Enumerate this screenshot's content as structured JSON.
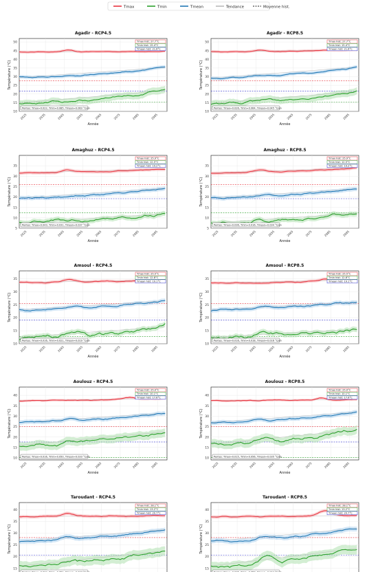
{
  "legend": {
    "items": [
      {
        "label": "Tmax",
        "color": "#e8343f",
        "style": "solid"
      },
      {
        "label": "Tmin",
        "color": "#2ca02c",
        "style": "solid"
      },
      {
        "label": "Tmean",
        "color": "#1f77b4",
        "style": "solid"
      },
      {
        "label": "Tendance",
        "color": "#bbbbbb",
        "style": "solid"
      },
      {
        "label": "Moyenne hist.",
        "color": "#222222",
        "style": "dashed"
      }
    ]
  },
  "colors": {
    "tmax": "#e8343f",
    "tmin": "#2ca02c",
    "tmean": "#1f77b4",
    "tmax_band": "#f7b7bb",
    "tmin_band": "#b5e2b5",
    "tmean_band": "#b3d4ee",
    "hist_max": "#e8343f",
    "hist_min": "#2ca02c",
    "hist_mean": "#3333cc"
  },
  "chart_data": [
    {
      "type": "line",
      "title": "Agadir - RCP4.5",
      "xlabel": "Année",
      "ylabel": "Température (°C)",
      "ylim": [
        10,
        52
      ],
      "yticks": [
        10,
        15,
        20,
        25,
        30,
        35,
        40,
        45,
        50
      ],
      "xticks": [
        2025,
        2035,
        2045,
        2055,
        2065,
        2075,
        2085,
        2095
      ],
      "xlim": [
        2021,
        2100
      ],
      "hist_labels": [
        "Tmax hist: 27.7°C",
        "Tmin hist: 15.4°C",
        "Tmean hist: 21.6°C"
      ],
      "hist": {
        "tmax": 27.7,
        "tmin": 15.4,
        "tmean": 21.6
      },
      "footer": "Pentes: Tmax=0.022, Tmin=0.085, Tmean=0.063 °C/an",
      "series": [
        {
          "name": "Tmax",
          "start": 44.2,
          "end": 44.6,
          "bump": [
            2047,
            45.3
          ],
          "band": 0.8
        },
        {
          "name": "Tmean",
          "start": 29.5,
          "end": 35.3,
          "bump": [
            2060,
            31.2
          ],
          "band": 1.0
        },
        {
          "name": "Tmin",
          "start": 14.8,
          "end": 22.0,
          "bump": [
            2060,
            17
          ],
          "band": 2.0
        }
      ]
    },
    {
      "type": "line",
      "title": "Agadir - RCP8.5",
      "xlabel": "Année",
      "ylabel": "Température (°C)",
      "ylim": [
        10,
        52
      ],
      "yticks": [
        10,
        15,
        20,
        25,
        30,
        35,
        40,
        45,
        50
      ],
      "xticks": [
        2025,
        2035,
        2045,
        2055,
        2065,
        2075,
        2085,
        2095
      ],
      "xlim": [
        2021,
        2100
      ],
      "hist_labels": [
        "Tmax hist: 27.7°C",
        "Tmin hist: 15.4°C",
        "Tmean hist: 21.6°C"
      ],
      "hist": {
        "tmax": 27.7,
        "tmin": 15.4,
        "tmean": 21.6
      },
      "footer": "Pentes: Tmax=0.026, Tmin=0.064, Tmean=0.045 °C/an",
      "series": [
        {
          "name": "Tmax",
          "start": 44.2,
          "end": 45.6,
          "bump": [
            2047,
            45.3
          ],
          "band": 0.8
        },
        {
          "name": "Tmean",
          "start": 29.2,
          "end": 35.5,
          "bump": [
            2050,
            31.0
          ],
          "band": 1.0
        },
        {
          "name": "Tmin",
          "start": 14.5,
          "end": 21.5,
          "bump": [
            2050,
            17
          ],
          "band": 2.0
        }
      ]
    },
    {
      "type": "line",
      "title": "Amaghuz - RCP4.5",
      "xlabel": "Année",
      "ylabel": "Température (°C)",
      "ylim": [
        5,
        40
      ],
      "yticks": [
        5,
        10,
        15,
        20,
        25,
        30,
        35
      ],
      "xticks": [
        2025,
        2035,
        2045,
        2055,
        2065,
        2075,
        2085,
        2095
      ],
      "xlim": [
        2021,
        2100
      ],
      "hist_labels": [
        "Tmax hist: 25.9°C",
        "Tmin hist: 12.5°C",
        "Tmean hist: 19.2°C"
      ],
      "hist": {
        "tmax": 25.9,
        "tmin": 12.5,
        "tmean": 19.2
      },
      "footer": "Pentes: Tmax=0.043, Tmin=0.031, Tmean=0.037 °C/an",
      "series": [
        {
          "name": "Tmax",
          "start": 31.5,
          "end": 33.5,
          "bump": [
            2047,
            33.0
          ],
          "band": 0.8
        },
        {
          "name": "Tmean",
          "start": 19.5,
          "end": 24.2,
          "bump": [
            2055,
            20.8
          ],
          "band": 1.0
        },
        {
          "name": "Tmin",
          "start": 7.5,
          "end": 12.0,
          "bump": [
            2040,
            9
          ],
          "band": 1.2
        }
      ]
    },
    {
      "type": "line",
      "title": "Amaghuz - RCP8.5",
      "xlabel": "Année",
      "ylabel": "Température (°C)",
      "ylim": [
        5,
        40
      ],
      "yticks": [
        5,
        10,
        15,
        20,
        25,
        30,
        35
      ],
      "xticks": [
        2025,
        2035,
        2045,
        2055,
        2065,
        2075,
        2085,
        2095
      ],
      "xlim": [
        2021,
        2100
      ],
      "hist_labels": [
        "Tmax hist: 25.9°C",
        "Tmin hist: 12.5°C",
        "Tmean hist: 19.2°C"
      ],
      "hist": {
        "tmax": 25.9,
        "tmin": 12.5,
        "tmean": 19.2
      },
      "footer": "Pentes: Tmax=0.036, Tmin=0.016, Tmean=0.034 °C/an",
      "series": [
        {
          "name": "Tmax",
          "start": 31.5,
          "end": 34.0,
          "bump": [
            2047,
            33.0
          ],
          "band": 0.8
        },
        {
          "name": "Tmean",
          "start": 19.5,
          "end": 24.0,
          "bump": [
            2050,
            20.8
          ],
          "band": 1.0
        },
        {
          "name": "Tmin",
          "start": 7.5,
          "end": 12.2,
          "bump": [
            2045,
            9
          ],
          "band": 1.2
        }
      ]
    },
    {
      "type": "line",
      "title": "Amsoul - RCP4.5",
      "xlabel": "Année",
      "ylabel": "Température (°C)",
      "ylim": [
        10,
        38
      ],
      "yticks": [
        10,
        15,
        20,
        25,
        30,
        35
      ],
      "xticks": [
        2025,
        2035,
        2045,
        2055,
        2065,
        2075,
        2085,
        2095
      ],
      "xlim": [
        2021,
        2100
      ],
      "hist_labels": [
        "Tmax hist: 25.5°C",
        "Tmin hist: 12.8°C",
        "Tmean hist: 19.1°C"
      ],
      "hist": {
        "tmax": 25.5,
        "tmin": 12.8,
        "tmean": 19.1
      },
      "footer": "Pentes: Tmax=0.016, Tmin=0.021, Tmean=0.019 °C/an",
      "series": [
        {
          "name": "Tmax",
          "start": 33.5,
          "end": 34.5,
          "bump": [
            2047,
            34.8
          ],
          "band": 0.6
        },
        {
          "name": "Tmean",
          "start": 23.0,
          "end": 26.5,
          "bump": [
            2050,
            24.5
          ],
          "band": 0.8
        },
        {
          "name": "Tmin",
          "start": 12.5,
          "end": 16.5,
          "bump": [
            2050,
            14.5
          ],
          "band": 1.0
        }
      ]
    },
    {
      "type": "line",
      "title": "Amsoul - RCP8.5",
      "xlabel": "Année",
      "ylabel": "Température (°C)",
      "ylim": [
        10,
        38
      ],
      "yticks": [
        10,
        15,
        20,
        25,
        30,
        35
      ],
      "xticks": [
        2025,
        2035,
        2045,
        2055,
        2065,
        2075,
        2085,
        2095
      ],
      "xlim": [
        2021,
        2100
      ],
      "hist_labels": [
        "Tmax hist: 25.5°C",
        "Tmin hist: 12.8°C",
        "Tmean hist: 19.1°C"
      ],
      "hist": {
        "tmax": 25.5,
        "tmin": 12.8,
        "tmean": 19.1
      },
      "footer": "Pentes: Tmax=0.016, Tmin=0.018, Tmean=0.016 °C/an",
      "series": [
        {
          "name": "Tmax",
          "start": 33.3,
          "end": 34.5,
          "bump": [
            2082,
            35.0
          ],
          "band": 0.6
        },
        {
          "name": "Tmean",
          "start": 23.0,
          "end": 26.0,
          "bump": [
            2050,
            24.5
          ],
          "band": 0.8
        },
        {
          "name": "Tmin",
          "start": 12.5,
          "end": 15.5,
          "bump": [
            2050,
            14.5
          ],
          "band": 1.0
        }
      ]
    },
    {
      "type": "line",
      "title": "Aoulouz - RCP4.5",
      "xlabel": "Année",
      "ylabel": "Température (°C)",
      "ylim": [
        9,
        44
      ],
      "yticks": [
        10,
        15,
        20,
        25,
        30,
        35,
        40
      ],
      "xticks": [
        2025,
        2035,
        2045,
        2055,
        2065,
        2075,
        2085,
        2095
      ],
      "xlim": [
        2021,
        2100
      ],
      "hist_labels": [
        "Tmax hist: 25.0°C",
        "Tmin hist: 10.1°C",
        "Tmean hist: 17.6°C"
      ],
      "hist": {
        "tmax": 25.0,
        "tmin": 10.1,
        "tmean": 17.6
      },
      "footer": "Pentes: Tmax=0.016, Tmin=0.050, Tmean=0.033 °C/an",
      "series": [
        {
          "name": "Tmax",
          "start": 37.5,
          "end": 38.5,
          "bump": [
            2080,
            39.0
          ],
          "band": 0.6
        },
        {
          "name": "Tmean",
          "start": 27.0,
          "end": 31.5,
          "bump": [
            2047,
            28.8
          ],
          "band": 1.0
        },
        {
          "name": "Tmin",
          "start": 16.0,
          "end": 22.5,
          "bump": [
            2047,
            18
          ],
          "band": 2.0
        }
      ]
    },
    {
      "type": "line",
      "title": "Aoulouz - RCP8.5",
      "xlabel": "Année",
      "ylabel": "Température (°C)",
      "ylim": [
        9,
        44
      ],
      "yticks": [
        10,
        15,
        20,
        25,
        30,
        35,
        40
      ],
      "xticks": [
        2025,
        2035,
        2045,
        2055,
        2065,
        2075,
        2085,
        2095
      ],
      "xlim": [
        2021,
        2100
      ],
      "hist_labels": [
        "Tmax hist: 25.0°C",
        "Tmin hist: 10.1°C",
        "Tmean hist: 17.6°C"
      ],
      "hist": {
        "tmax": 25.0,
        "tmin": 10.1,
        "tmean": 17.6
      },
      "footer": "Pentes: Tmax=0.015, Tmin=0.056, Tmean=0.035 °C/an",
      "series": [
        {
          "name": "Tmax",
          "start": 37.5,
          "end": 38.0,
          "bump": [
            2080,
            38.8
          ],
          "band": 0.6
        },
        {
          "name": "Tmean",
          "start": 27.0,
          "end": 32.0,
          "bump": [
            2047,
            28.5
          ],
          "band": 1.0
        },
        {
          "name": "Tmin",
          "start": 16.5,
          "end": 23.5,
          "bump": [
            2050,
            20
          ],
          "band": 2.0
        }
      ]
    },
    {
      "type": "line",
      "title": "Taroudant - RCP4.5",
      "xlabel": "Année",
      "ylabel": "Température (°C)",
      "ylim": [
        12,
        43
      ],
      "yticks": [
        15,
        20,
        25,
        30,
        35,
        40
      ],
      "xticks": [
        2025,
        2035,
        2045,
        2055,
        2065,
        2075,
        2085,
        2095
      ],
      "xlim": [
        2021,
        2100
      ],
      "hist_labels": [
        "Tmax hist: 28.1°C",
        "Tmin hist: 13.2°C",
        "Tmean hist: 20.7°C"
      ],
      "hist": {
        "tmax": 28.1,
        "tmin": 13.2,
        "tmean": 20.7
      },
      "footer": "Pentes: Tmax=0.022, Tmin=0.051, Tmean=0.037 °C/an",
      "series": [
        {
          "name": "Tmax",
          "start": 37.0,
          "end": 37.5,
          "bump": [
            2047,
            38.5
          ],
          "band": 0.7
        },
        {
          "name": "Tmean",
          "start": 26.5,
          "end": 31.5,
          "bump": [
            2047,
            28.5
          ],
          "band": 1.0
        },
        {
          "name": "Tmin",
          "start": 16.0,
          "end": 22.5,
          "bump": [
            2050,
            18.5
          ],
          "band": 2.0
        }
      ]
    },
    {
      "type": "line",
      "title": "Taroudant - RCP8.5",
      "xlabel": "Année",
      "ylabel": "Température (°C)",
      "ylim": [
        12,
        43
      ],
      "yticks": [
        15,
        20,
        25,
        30,
        35,
        40
      ],
      "xticks": [
        2025,
        2035,
        2045,
        2055,
        2065,
        2075,
        2085,
        2095
      ],
      "xlim": [
        2021,
        2100
      ],
      "hist_labels": [
        "Tmax hist: 28.1°C",
        "Tmin hist: 13.2°C",
        "Tmean hist: 20.7°C"
      ],
      "hist": {
        "tmax": 28.1,
        "tmin": 13.2,
        "tmean": 20.7
      },
      "footer": "Pentes: Tmax=0.025, Tmin=0.058, Tmean=0.044 °C/an",
      "series": [
        {
          "name": "Tmax",
          "start": 37.0,
          "end": 37.5,
          "bump": [
            2082,
            39.5
          ],
          "band": 0.7
        },
        {
          "name": "Tmean",
          "start": 26.5,
          "end": 32.0,
          "bump": [
            2050,
            28.5
          ],
          "band": 1.0
        },
        {
          "name": "Tmin",
          "start": 16.0,
          "end": 23.5,
          "bump": [
            2050,
            20
          ],
          "band": 2.0
        }
      ]
    }
  ]
}
